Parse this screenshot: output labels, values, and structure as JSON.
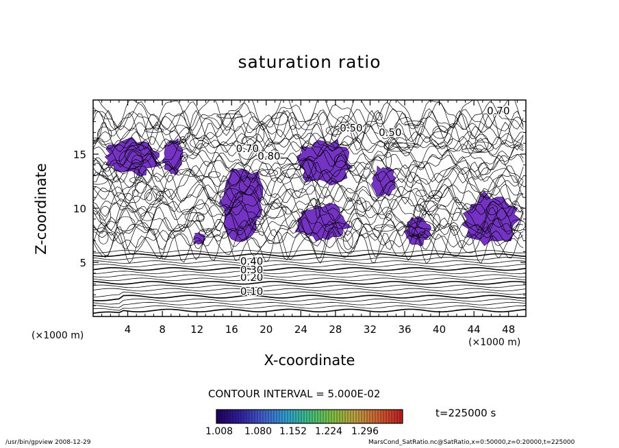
{
  "chart_data": {
    "type": "heatmap",
    "title": "saturation ratio",
    "xlabel": "X-coordinate",
    "ylabel": "Z-coordinate",
    "x_unit": "(×1000 m)",
    "xlim": [
      0,
      50
    ],
    "ylim": [
      0,
      20
    ],
    "x_ticks": [
      4,
      8,
      12,
      16,
      20,
      24,
      28,
      32,
      36,
      40,
      44,
      48
    ],
    "y_ticks": [
      5,
      10,
      15
    ],
    "contour_interval_text": "CONTOUR INTERVAL = 5.000E-02",
    "time_label": "t=225000 s",
    "colorbar": {
      "tick_labels": [
        "1.008",
        "1.080",
        "1.152",
        "1.224",
        "1.296"
      ],
      "min": 1.008,
      "max": 1.3,
      "colors": [
        "#200060",
        "#3020a0",
        "#4060d0",
        "#30a0d0",
        "#40c080",
        "#80c040",
        "#c0a040",
        "#d06030",
        "#c02020"
      ]
    },
    "shaded_fill_color": "#7433c2",
    "contour_labels": [
      {
        "text": "0.10",
        "x": 17,
        "z": 2.3
      },
      {
        "text": "0.20",
        "x": 17,
        "z": 3.6
      },
      {
        "text": "0.30",
        "x": 17,
        "z": 4.3
      },
      {
        "text": "0.40",
        "x": 17,
        "z": 5.1
      },
      {
        "text": "0.70",
        "x": 16.5,
        "z": 15.5
      },
      {
        "text": "0.80",
        "x": 19,
        "z": 14.8
      },
      {
        "text": "0.50",
        "x": 28.5,
        "z": 17.4
      },
      {
        "text": "0.50",
        "x": 33,
        "z": 17.0
      },
      {
        "text": "0.70",
        "x": 45.5,
        "z": 19.0
      }
    ],
    "supersaturated_regions": [
      {
        "x": [
          1,
          8
        ],
        "z": [
          13,
          16.5
        ]
      },
      {
        "x": [
          8,
          10.5
        ],
        "z": [
          13,
          16.5
        ]
      },
      {
        "x": [
          14.5,
          20
        ],
        "z": [
          7,
          14
        ]
      },
      {
        "x": [
          23.5,
          30
        ],
        "z": [
          12,
          16.5
        ]
      },
      {
        "x": [
          23,
          30
        ],
        "z": [
          6.8,
          10.5
        ]
      },
      {
        "x": [
          32,
          35
        ],
        "z": [
          11,
          14
        ]
      },
      {
        "x": [
          36,
          39
        ],
        "z": [
          6.5,
          9.2
        ]
      },
      {
        "x": [
          42.5,
          49.5
        ],
        "z": [
          6.5,
          11.5
        ]
      },
      {
        "x": [
          11.5,
          13
        ],
        "z": [
          6.6,
          7.8
        ]
      }
    ]
  },
  "footer": {
    "left": "/usr/bin/gpview   2008-12-29",
    "right": "MarsCond_SatRatio.nc@SatRatio,x=0:50000,z=0:20000,t=225000"
  }
}
